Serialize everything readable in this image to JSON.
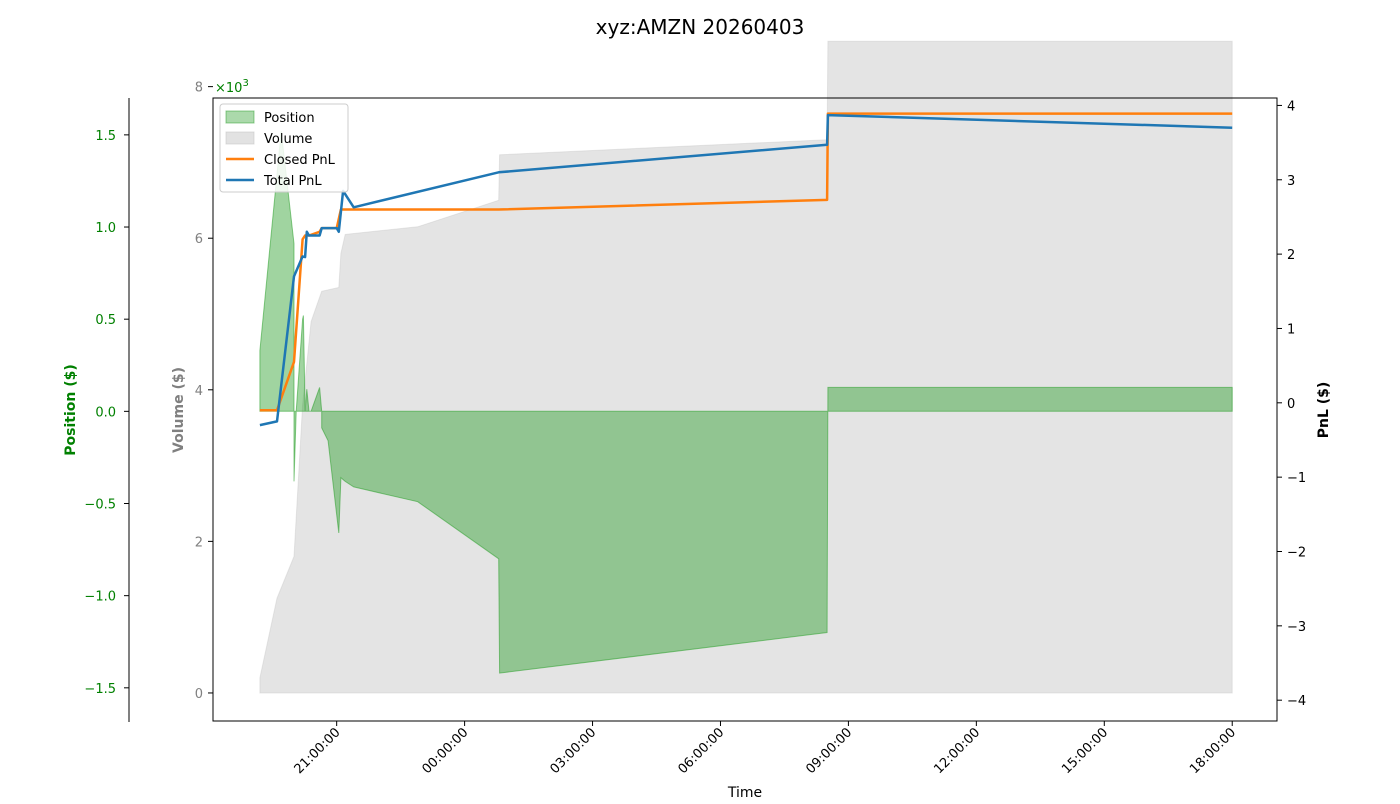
{
  "chart_data": {
    "type": "area",
    "title": "xyz:AMZN 20260403",
    "xlabel": "Time",
    "x_ticks": [
      "21:00:00",
      "00:00:00",
      "03:00:00",
      "06:00:00",
      "09:00:00",
      "12:00:00",
      "15:00:00",
      "18:00:00"
    ],
    "x_tick_values": [
      21,
      24,
      27,
      30,
      33,
      36,
      39,
      42
    ],
    "x_unit": "hours since 00:00:00 of first day",
    "xlim": [
      18.1,
      43.05
    ],
    "axes": {
      "position": {
        "label": "Position ($)",
        "color": "#008000",
        "ylim": [
          -1.68,
          1.7
        ],
        "ticks": [
          "1.5",
          "1.0",
          "0.5",
          "0.0",
          "−0.5",
          "−1.0",
          "−1.5"
        ],
        "tick_values": [
          1.5,
          1.0,
          0.5,
          0.0,
          -0.5,
          -1.0,
          -1.5
        ],
        "multiplier": "×10",
        "multiplier_exp": "3"
      },
      "volume": {
        "label": "Volume ($)",
        "color": "#808080",
        "ylim": [
          -0.37,
          7.85
        ],
        "ticks": [
          "8",
          "6",
          "4",
          "2",
          "0"
        ],
        "tick_values": [
          8,
          6,
          4,
          2,
          0
        ]
      },
      "pnl": {
        "label": "PnL ($)",
        "color": "#000000",
        "ylim": [
          -4.28,
          4.1
        ],
        "ticks": [
          "4",
          "3",
          "2",
          "1",
          "0",
          "−1",
          "−2",
          "−3",
          "−4"
        ],
        "tick_values": [
          4,
          3,
          2,
          1,
          0,
          -1,
          -2,
          -3,
          -4
        ]
      }
    },
    "legend": {
      "placement": "upper-left",
      "entries": [
        {
          "label": "Position",
          "kind": "patch",
          "color": "#2ca02c"
        },
        {
          "label": "Volume",
          "kind": "patch",
          "color": "#bfbfbf"
        },
        {
          "label": "Closed PnL",
          "kind": "line",
          "color": "#ff7f0e"
        },
        {
          "label": "Total PnL",
          "kind": "line",
          "color": "#1f77b4"
        }
      ]
    },
    "series": [
      {
        "name": "Position",
        "axis": "position",
        "kind": "area",
        "color": "#2ca02c",
        "x": [
          19.2,
          19.2,
          19.7,
          20.0,
          20.0,
          20.05,
          20.2,
          20.22,
          20.26,
          20.3,
          20.35,
          20.4,
          20.6,
          20.65,
          20.65,
          20.8,
          21.05,
          21.1,
          21.2,
          21.4,
          22.9,
          24.8,
          24.82,
          32.5,
          32.52,
          42.0
        ],
        "y": [
          0.0,
          0.33,
          1.52,
          0.91,
          -0.38,
          0.0,
          0.5,
          0.52,
          0.0,
          0.12,
          0.0,
          0.0,
          0.13,
          0.0,
          -0.09,
          -0.16,
          -0.66,
          -0.36,
          -0.38,
          -0.41,
          -0.49,
          -0.8,
          -1.42,
          -1.2,
          0.13,
          0.13
        ]
      },
      {
        "name": "Volume",
        "axis": "volume",
        "kind": "area",
        "color": "#bfbfbf",
        "x": [
          19.2,
          19.2,
          19.6,
          20.0,
          20.2,
          20.4,
          20.65,
          21.05,
          21.1,
          21.2,
          22.9,
          24.8,
          24.82,
          32.5,
          32.52,
          42.0
        ],
        "y": [
          0.0,
          0.2,
          1.25,
          1.8,
          3.8,
          4.9,
          5.3,
          5.35,
          5.8,
          6.05,
          6.15,
          6.5,
          7.1,
          7.3,
          8.6,
          8.6
        ]
      },
      {
        "name": "Closed PnL",
        "axis": "pnl",
        "kind": "line",
        "color": "#ff7f0e",
        "x": [
          19.2,
          19.6,
          20.0,
          20.2,
          20.26,
          20.35,
          20.6,
          20.65,
          21.0,
          21.1,
          21.15,
          24.8,
          32.5,
          32.52,
          42.0
        ],
        "y": [
          -0.1,
          -0.1,
          0.55,
          2.2,
          2.25,
          2.25,
          2.3,
          2.35,
          2.35,
          2.6,
          2.6,
          2.6,
          2.73,
          3.89,
          3.89
        ]
      },
      {
        "name": "Total PnL",
        "axis": "pnl",
        "kind": "line",
        "color": "#1f77b4",
        "x": [
          19.2,
          19.6,
          20.0,
          20.2,
          20.26,
          20.3,
          20.35,
          20.4,
          20.6,
          20.65,
          21.0,
          21.05,
          21.15,
          21.4,
          24.8,
          32.5,
          32.52,
          42.0
        ],
        "y": [
          -0.3,
          -0.25,
          1.7,
          1.97,
          1.96,
          2.3,
          2.25,
          2.25,
          2.25,
          2.35,
          2.35,
          2.3,
          2.85,
          2.63,
          3.1,
          3.47,
          3.87,
          3.7
        ]
      }
    ]
  }
}
